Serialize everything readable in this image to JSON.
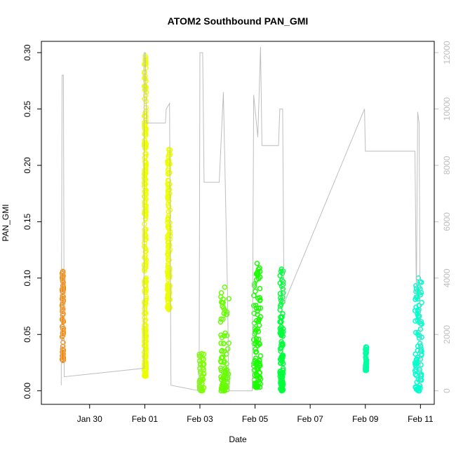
{
  "chart_data": {
    "type": "scatter",
    "title": "ATOM2 Southbound PAN_GMI",
    "xlabel": "Date",
    "ylabel": "PAN_GMI",
    "x_ticks": [
      "Jan 30",
      "Feb 01",
      "Feb 03",
      "Feb 05",
      "Feb 07",
      "Feb 09",
      "Feb 11"
    ],
    "x_tick_days": [
      30,
      32,
      34,
      36,
      38,
      40,
      42
    ],
    "xlim_days": [
      28.25,
      42.5
    ],
    "y_ticks": [
      "0.00",
      "0.05",
      "0.10",
      "0.15",
      "0.20",
      "0.25",
      "0.30"
    ],
    "y_tick_values": [
      0,
      0.05,
      0.1,
      0.15,
      0.2,
      0.25,
      0.3
    ],
    "ylim": [
      -0.012,
      0.31
    ],
    "y2_ticks": [
      "0",
      "2000",
      "4000",
      "6000",
      "8000",
      "10000",
      "12000"
    ],
    "y2_tick_values": [
      0,
      2000,
      4000,
      6000,
      8000,
      10000,
      12000
    ],
    "y2lim": [
      -480,
      12400
    ],
    "grid": false,
    "legend": "none",
    "line_color": "#bebebe",
    "point_groups": [
      {
        "color": "#ff8a00",
        "x": [
          29.0,
          29.05
        ],
        "ymin": 0.027,
        "ymax": 0.106
      },
      {
        "color": "#ecff00",
        "x": [
          31.98,
          32.05
        ],
        "ymin": 0.013,
        "ymax": 0.297
      },
      {
        "color": "#ecff00",
        "x": [
          32.82,
          32.92
        ],
        "ymin": 0.072,
        "ymax": 0.214
      },
      {
        "color": "#7dff00",
        "x": [
          33.98,
          34.15
        ],
        "ymin": 0.0,
        "ymax": 0.033
      },
      {
        "color": "#66ff00",
        "x": [
          34.75,
          35.05
        ],
        "ymin": 0.0,
        "ymax": 0.092
      },
      {
        "color": "#1aff00",
        "x": [
          35.95,
          36.2
        ],
        "ymin": 0.003,
        "ymax": 0.113
      },
      {
        "color": "#00ff3a",
        "x": [
          36.9,
          37.02
        ],
        "ymin": 0.0,
        "ymax": 0.108
      },
      {
        "color": "#00ffa0",
        "x": [
          40.0,
          40.05
        ],
        "ymin": 0.018,
        "ymax": 0.039
      },
      {
        "color": "#00ffcc",
        "x": [
          41.8,
          42.05
        ],
        "ymin": 0.0,
        "ymax": 0.1
      }
    ],
    "altitude_series": {
      "name": "",
      "points": [
        [
          28.97,
          200
        ],
        [
          29.0,
          11200
        ],
        [
          29.05,
          11200
        ],
        [
          29.08,
          500
        ],
        [
          31.97,
          800
        ],
        [
          31.98,
          12000
        ],
        [
          32.02,
          12000
        ],
        [
          32.06,
          9500
        ],
        [
          32.75,
          9500
        ],
        [
          32.78,
          10000
        ],
        [
          32.9,
          10200
        ],
        [
          32.95,
          200
        ],
        [
          33.97,
          0
        ],
        [
          34.0,
          12000
        ],
        [
          34.1,
          12000
        ],
        [
          34.15,
          7400
        ],
        [
          34.7,
          7400
        ],
        [
          34.85,
          10600
        ],
        [
          35.0,
          3500
        ],
        [
          35.05,
          0
        ],
        [
          35.9,
          0
        ],
        [
          35.95,
          10500
        ],
        [
          36.1,
          9000
        ],
        [
          36.2,
          12200
        ],
        [
          36.25,
          8700
        ],
        [
          36.85,
          8700
        ],
        [
          36.9,
          10000
        ],
        [
          37.0,
          10000
        ],
        [
          37.05,
          3100
        ],
        [
          39.97,
          10000
        ],
        [
          40.0,
          8500
        ],
        [
          41.0,
          8500
        ],
        [
          41.8,
          8500
        ],
        [
          41.85,
          3300
        ],
        [
          41.9,
          9900
        ],
        [
          41.95,
          9500
        ],
        [
          42.0,
          200
        ]
      ]
    }
  }
}
